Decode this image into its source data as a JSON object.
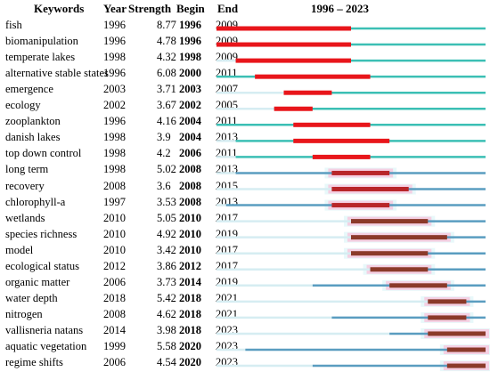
{
  "chart_data": {
    "type": "table",
    "headers": {
      "keywords": "Keywords",
      "year": "Year",
      "strength": "Strength",
      "begin": "Begin",
      "end": "End",
      "timeline": "1996 – 2023"
    },
    "range": [
      1996,
      2023
    ],
    "rows": [
      {
        "keyword": "fish",
        "year": 1996,
        "strength": "8.77",
        "begin": 1996,
        "end": 2009
      },
      {
        "keyword": "biomanipulation",
        "year": 1996,
        "strength": "4.78",
        "begin": 1996,
        "end": 2009
      },
      {
        "keyword": "temperate lakes",
        "year": 1998,
        "strength": "4.32",
        "begin": 1998,
        "end": 2009
      },
      {
        "keyword": "alternative stable states",
        "year": 1996,
        "strength": "6.08",
        "begin": 2000,
        "end": 2011
      },
      {
        "keyword": "emergence",
        "year": 2003,
        "strength": "3.71",
        "begin": 2003,
        "end": 2007
      },
      {
        "keyword": "ecology",
        "year": 2002,
        "strength": "3.67",
        "begin": 2002,
        "end": 2005
      },
      {
        "keyword": "zooplankton",
        "year": 1996,
        "strength": "4.16",
        "begin": 2004,
        "end": 2011
      },
      {
        "keyword": "danish lakes",
        "year": 1998,
        "strength": "3.9",
        "begin": 2004,
        "end": 2013
      },
      {
        "keyword": "top down control",
        "year": 1998,
        "strength": "4.2",
        "begin": 2006,
        "end": 2011
      },
      {
        "keyword": "long term",
        "year": 1998,
        "strength": "5.02",
        "begin": 2008,
        "end": 2013
      },
      {
        "keyword": "recovery",
        "year": 2008,
        "strength": "3.6",
        "begin": 2008,
        "end": 2015
      },
      {
        "keyword": "chlorophyll-a",
        "year": 1997,
        "strength": "3.53",
        "begin": 2008,
        "end": 2013
      },
      {
        "keyword": "wetlands",
        "year": 2010,
        "strength": "5.05",
        "begin": 2010,
        "end": 2017
      },
      {
        "keyword": "species richness",
        "year": 2010,
        "strength": "4.92",
        "begin": 2010,
        "end": 2019
      },
      {
        "keyword": "model",
        "year": 2010,
        "strength": "3.42",
        "begin": 2010,
        "end": 2017
      },
      {
        "keyword": "ecological status",
        "year": 2012,
        "strength": "3.86",
        "begin": 2012,
        "end": 2017
      },
      {
        "keyword": "organic matter",
        "year": 2006,
        "strength": "3.73",
        "begin": 2014,
        "end": 2019
      },
      {
        "keyword": "water depth",
        "year": 2018,
        "strength": "5.42",
        "begin": 2018,
        "end": 2021
      },
      {
        "keyword": "nitrogen",
        "year": 2008,
        "strength": "4.62",
        "begin": 2018,
        "end": 2021
      },
      {
        "keyword": "vallisneria natans",
        "year": 2014,
        "strength": "3.98",
        "begin": 2018,
        "end": 2023
      },
      {
        "keyword": "aquatic vegetation",
        "year": 1999,
        "strength": "5.58",
        "begin": 2020,
        "end": 2023
      },
      {
        "keyword": "regime shifts",
        "year": 2006,
        "strength": "4.54",
        "begin": 2020,
        "end": 2023
      }
    ],
    "colors": {
      "before_year": "#d6edf2",
      "active_line": "#3bbfb4",
      "active_line_late": "#5a9dc0",
      "burst_strong": "#e8161b",
      "burst_weak": "#b8262a",
      "burst_dark": "#8b3a2a",
      "burst_halo": "#f7c6dd",
      "burst_halo_soft": "#d9f3f6"
    }
  }
}
